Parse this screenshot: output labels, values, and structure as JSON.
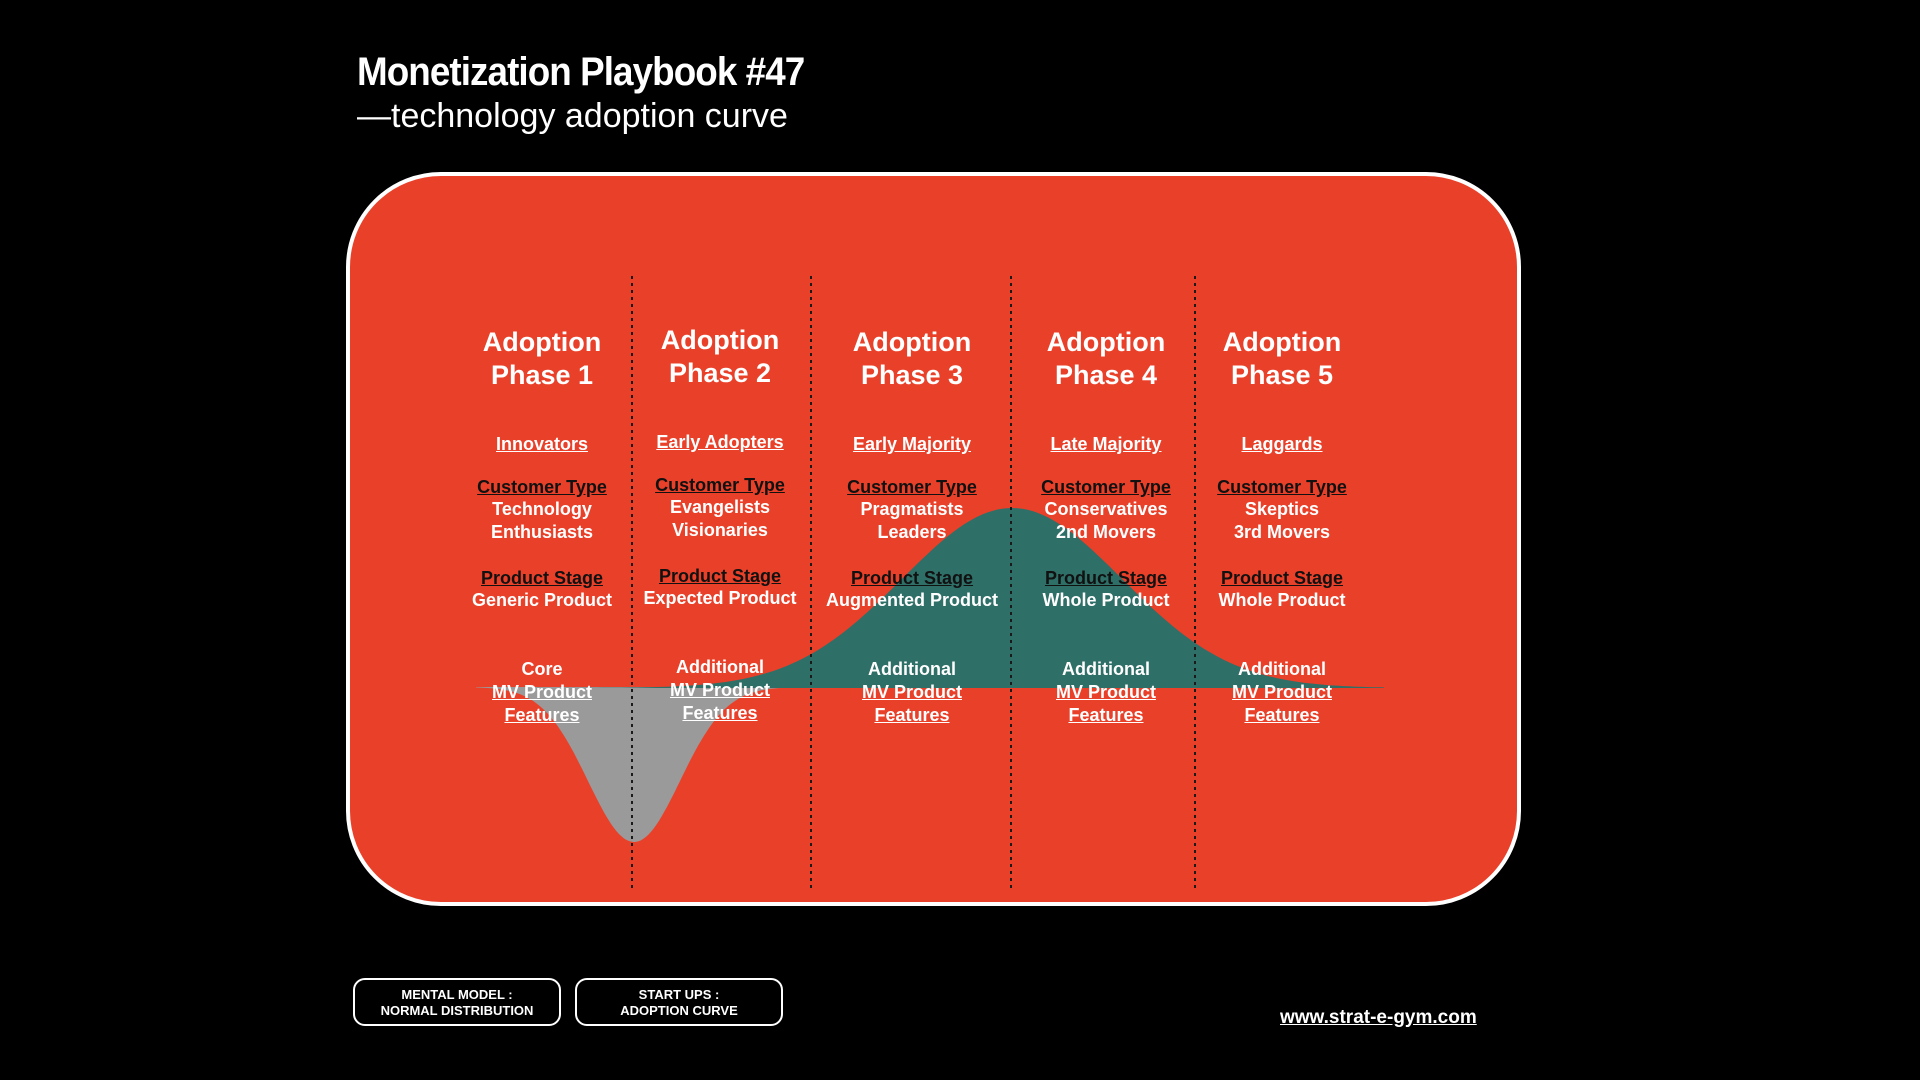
{
  "header": {
    "title": "Monetization Playbook #47",
    "subtitle": "—technology adoption curve"
  },
  "colors": {
    "background": "#000000",
    "panel": "#e9402a",
    "adoption_curve": "#2e6f68",
    "mvp_curve": "#9a9a9a",
    "text": "#ffffff",
    "label_dark": "#111111"
  },
  "customer_type_label": "Customer Type",
  "product_stage_label": "Product Stage",
  "phases": [
    {
      "title_line1": "Adoption",
      "title_line2": "Phase 1",
      "group": "Innovators",
      "customer_type_line1": "Technology",
      "customer_type_line2": "Enthusiasts",
      "product_stage": "Generic Product",
      "features_line1": "Core",
      "features_line2": "MV Product",
      "features_line3": "Features"
    },
    {
      "title_line1": "Adoption",
      "title_line2": "Phase 2",
      "group": "Early Adopters",
      "customer_type_line1": "Evangelists",
      "customer_type_line2": "Visionaries",
      "product_stage": "Expected Product",
      "features_line1": "Additional",
      "features_line2": "MV Product",
      "features_line3": "Features"
    },
    {
      "title_line1": "Adoption",
      "title_line2": "Phase 3",
      "group": "Early Majority",
      "customer_type_line1": "Pragmatists",
      "customer_type_line2": "Leaders",
      "product_stage": "Augmented Product",
      "features_line1": "Additional",
      "features_line2": "MV Product",
      "features_line3": "Features"
    },
    {
      "title_line1": "Adoption",
      "title_line2": "Phase 4",
      "group": "Late Majority",
      "customer_type_line1": "Conservatives",
      "customer_type_line2": "2nd Movers",
      "product_stage": "Whole Product",
      "features_line1": "Additional",
      "features_line2": "MV Product",
      "features_line3": "Features"
    },
    {
      "title_line1": "Adoption",
      "title_line2": "Phase 5",
      "group": "Laggards",
      "customer_type_line1": "Skeptics",
      "customer_type_line2": "3rd Movers",
      "product_stage": "Whole Product",
      "features_line1": "Additional",
      "features_line2": "MV Product",
      "features_line3": "Features"
    }
  ],
  "buttons": {
    "mental_model_line1": "MENTAL MODEL :",
    "mental_model_line2": "NORMAL DISTRIBUTION",
    "startups_line1": "START UPS :",
    "startups_line2": "ADOPTION CURVE"
  },
  "footer": {
    "url": "www.strat-e-gym.com"
  }
}
